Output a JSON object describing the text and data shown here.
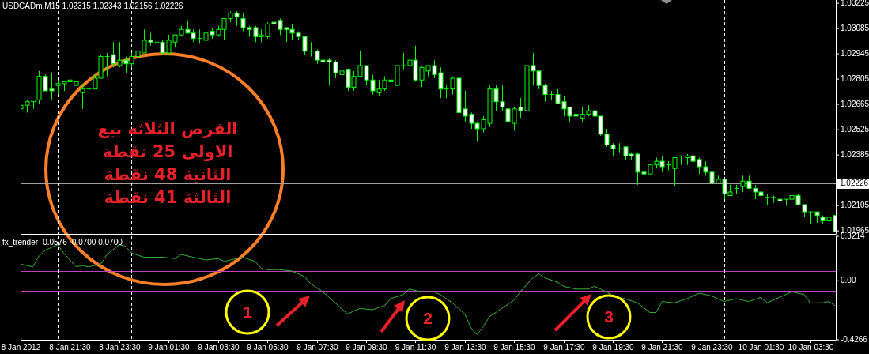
{
  "chart_data": [
    {
      "type": "candlestick",
      "title": "USDCADm,M15  1.02315 1.02343 1.02156 1.02226",
      "color": "#00ff00",
      "tick_labels": "y",
      "x": [
        "2012-01-08T19:30",
        "2012-01-08T19:45",
        "2012-01-08T20:00",
        "2012-01-08T20:15",
        "2012-01-08T20:30",
        "2012-01-08T20:45",
        "2012-01-08T21:00",
        "2012-01-08T21:15",
        "2012-01-08T21:30",
        "2012-01-08T21:45",
        "2012-01-08T22:00",
        "2012-01-08T22:15",
        "2012-01-08T22:30",
        "2012-01-08T22:45",
        "2012-01-08T23:00",
        "2012-01-08T23:15",
        "2012-01-08T23:30",
        "2012-01-08T23:45",
        "2012-01-09T00:00",
        "2012-01-09T00:15",
        "2012-01-09T00:30",
        "2012-01-09T00:45",
        "2012-01-09T01:00",
        "2012-01-09T01:15",
        "2012-01-09T01:30",
        "2012-01-09T01:45",
        "2012-01-09T02:00",
        "2012-01-09T02:15",
        "2012-01-09T02:30",
        "2012-01-09T02:45",
        "2012-01-09T03:00",
        "2012-01-09T03:15",
        "2012-01-09T03:30",
        "2012-01-09T03:45",
        "2012-01-09T04:00",
        "2012-01-09T04:15",
        "2012-01-09T04:30",
        "2012-01-09T04:45",
        "2012-01-09T05:00",
        "2012-01-09T05:15",
        "2012-01-09T05:30",
        "2012-01-09T05:45",
        "2012-01-09T06:00",
        "2012-01-09T06:15",
        "2012-01-09T06:30",
        "2012-01-09T06:45",
        "2012-01-09T07:00",
        "2012-01-09T07:15",
        "2012-01-09T07:30",
        "2012-01-09T07:45",
        "2012-01-09T08:00",
        "2012-01-09T08:15",
        "2012-01-09T08:30",
        "2012-01-09T08:45",
        "2012-01-09T09:00",
        "2012-01-09T09:15",
        "2012-01-09T09:30",
        "2012-01-09T09:45",
        "2012-01-09T10:00",
        "2012-01-09T10:15",
        "2012-01-09T10:30",
        "2012-01-09T10:45",
        "2012-01-09T11:00",
        "2012-01-09T11:15",
        "2012-01-09T11:30",
        "2012-01-09T11:45",
        "2012-01-09T12:00",
        "2012-01-09T12:15",
        "2012-01-09T12:30",
        "2012-01-09T12:45",
        "2012-01-09T13:00",
        "2012-01-09T13:15",
        "2012-01-09T13:30",
        "2012-01-09T13:45",
        "2012-01-09T14:00",
        "2012-01-09T14:15",
        "2012-01-09T14:30",
        "2012-01-09T14:45",
        "2012-01-09T15:00",
        "2012-01-09T15:15",
        "2012-01-09T15:30",
        "2012-01-09T15:45",
        "2012-01-09T16:00",
        "2012-01-09T16:15",
        "2012-01-09T16:30",
        "2012-01-09T16:45",
        "2012-01-09T17:00",
        "2012-01-09T17:15",
        "2012-01-09T17:30",
        "2012-01-09T17:45",
        "2012-01-09T18:00",
        "2012-01-09T18:15",
        "2012-01-09T18:30",
        "2012-01-09T18:45",
        "2012-01-09T19:00",
        "2012-01-09T19:15",
        "2012-01-09T19:30",
        "2012-01-09T19:45",
        "2012-01-09T20:00",
        "2012-01-09T20:15",
        "2012-01-09T20:30",
        "2012-01-09T20:45",
        "2012-01-09T21:00",
        "2012-01-09T21:15",
        "2012-01-09T21:30",
        "2012-01-09T21:45",
        "2012-01-09T22:00",
        "2012-01-09T22:15",
        "2012-01-09T22:30",
        "2012-01-09T22:45",
        "2012-01-09T23:00",
        "2012-01-09T23:15",
        "2012-01-09T23:30",
        "2012-01-09T23:45",
        "2012-01-10T00:00",
        "2012-01-10T00:15",
        "2012-01-10T00:30",
        "2012-01-10T00:45",
        "2012-01-10T01:00",
        "2012-01-10T01:15",
        "2012-01-10T01:30",
        "2012-01-10T01:45",
        "2012-01-10T02:00",
        "2012-01-10T02:15",
        "2012-01-10T02:30",
        "2012-01-10T02:45",
        "2012-01-10T03:00",
        "2012-01-10T03:15",
        "2012-01-10T03:30",
        "2012-01-10T03:45",
        "2012-01-10T04:00",
        "2012-01-10T04:15",
        "2012-01-10T04:30"
      ],
      "ohlc": [
        [
          1.0264,
          1.0267,
          1.0262,
          1.0266
        ],
        [
          1.0266,
          1.0269,
          1.0262,
          1.0268
        ],
        [
          1.0268,
          1.0269,
          1.0264,
          1.0269
        ],
        [
          1.0269,
          1.0285,
          1.0267,
          1.0282
        ],
        [
          1.0282,
          1.0283,
          1.0274,
          1.0274
        ],
        [
          1.0275,
          1.0284,
          1.0269,
          1.0274
        ],
        [
          1.0277,
          1.028,
          1.0272,
          1.0278
        ],
        [
          1.0278,
          1.0279,
          1.0274,
          1.0279
        ],
        [
          1.0279,
          1.028,
          1.0275,
          1.028
        ],
        [
          1.0277,
          1.0279,
          1.0277,
          1.0279
        ],
        [
          1.0273,
          1.0278,
          1.0264,
          1.0275
        ],
        [
          1.0275,
          1.0277,
          1.0272,
          1.0275
        ],
        [
          1.0275,
          1.0283,
          1.0275,
          1.0281
        ],
        [
          1.0281,
          1.0294,
          1.0281,
          1.0293
        ],
        [
          1.0293,
          1.0295,
          1.0282,
          1.0293
        ],
        [
          1.0294,
          1.0301,
          1.0287,
          1.0289
        ],
        [
          1.0288,
          1.0301,
          1.0287,
          1.0291
        ],
        [
          1.0291,
          1.0293,
          1.0284,
          1.0289
        ],
        [
          1.0289,
          1.0295,
          1.0287,
          1.0293
        ],
        [
          1.0293,
          1.03,
          1.0292,
          1.0296
        ],
        [
          1.0295,
          1.0308,
          1.0295,
          1.0302
        ],
        [
          1.0302,
          1.0306,
          1.0299,
          1.0301
        ],
        [
          1.0301,
          1.0302,
          1.0295,
          1.0301
        ],
        [
          1.0301,
          1.0302,
          1.0294,
          1.0295
        ],
        [
          1.0295,
          1.0305,
          1.0294,
          1.0302
        ],
        [
          1.0301,
          1.0305,
          1.0298,
          1.0305
        ],
        [
          1.0305,
          1.031,
          1.0304,
          1.0308
        ],
        [
          1.0308,
          1.0313,
          1.0306,
          1.0306
        ],
        [
          1.0306,
          1.0308,
          1.0301,
          1.0303
        ],
        [
          1.0303,
          1.0308,
          1.03,
          1.0303
        ],
        [
          1.0302,
          1.0309,
          1.0301,
          1.0306
        ],
        [
          1.0307,
          1.0309,
          1.0303,
          1.0305
        ],
        [
          1.0305,
          1.031,
          1.0304,
          1.0308
        ],
        [
          1.0308,
          1.0314,
          1.0302,
          1.0314
        ],
        [
          1.0314,
          1.0318,
          1.0312,
          1.0317
        ],
        [
          1.0317,
          1.0318,
          1.031,
          1.0315
        ],
        [
          1.0314,
          1.0317,
          1.0307,
          1.0309
        ],
        [
          1.0309,
          1.031,
          1.0304,
          1.0308
        ],
        [
          1.0309,
          1.031,
          1.0301,
          1.0304
        ],
        [
          1.0304,
          1.0308,
          1.0301,
          1.0305
        ],
        [
          1.0304,
          1.0312,
          1.0303,
          1.0311
        ],
        [
          1.0312,
          1.0315,
          1.031,
          1.0311
        ],
        [
          1.0313,
          1.0314,
          1.0305,
          1.0308
        ],
        [
          1.0309,
          1.0309,
          1.0301,
          1.0308
        ],
        [
          1.0308,
          1.0311,
          1.0302,
          1.0306
        ],
        [
          1.0306,
          1.0307,
          1.0302,
          1.0304
        ],
        [
          1.0304,
          1.0304,
          1.0294,
          1.0296
        ],
        [
          1.0296,
          1.0301,
          1.0293,
          1.0296
        ],
        [
          1.0296,
          1.0297,
          1.0289,
          1.0291
        ],
        [
          1.0291,
          1.0296,
          1.0289,
          1.029
        ],
        [
          1.0291,
          1.0292,
          1.0277,
          1.029
        ],
        [
          1.029,
          1.0291,
          1.0281,
          1.0284
        ],
        [
          1.0283,
          1.0291,
          1.0276,
          1.0285
        ],
        [
          1.0286,
          1.0286,
          1.0274,
          1.0276
        ],
        [
          1.0276,
          1.0285,
          1.0274,
          1.0282
        ],
        [
          1.0282,
          1.0296,
          1.0282,
          1.0288
        ],
        [
          1.0288,
          1.0288,
          1.0277,
          1.028
        ],
        [
          1.028,
          1.0283,
          1.0272,
          1.0274
        ],
        [
          1.0273,
          1.028,
          1.0271,
          1.0275
        ],
        [
          1.0275,
          1.0282,
          1.0274,
          1.028
        ],
        [
          1.028,
          1.0283,
          1.0277,
          1.0279
        ],
        [
          1.0277,
          1.0288,
          1.0277,
          1.0288
        ],
        [
          1.0288,
          1.0295,
          1.0286,
          1.0288
        ],
        [
          1.0288,
          1.0294,
          1.0285,
          1.0291
        ],
        [
          1.0291,
          1.0299,
          1.0279,
          1.028
        ],
        [
          1.028,
          1.0288,
          1.0276,
          1.0287
        ],
        [
          1.0285,
          1.0288,
          1.0282,
          1.0288
        ],
        [
          1.0288,
          1.0291,
          1.0281,
          1.0283
        ],
        [
          1.0284,
          1.0287,
          1.027,
          1.0275
        ],
        [
          1.0275,
          1.0277,
          1.027,
          1.0275
        ],
        [
          1.0275,
          1.0282,
          1.0272,
          1.0281
        ],
        [
          1.0281,
          1.0281,
          1.0259,
          1.0262
        ],
        [
          1.0264,
          1.0274,
          1.0257,
          1.026
        ],
        [
          1.0261,
          1.0262,
          1.0253,
          1.0256
        ],
        [
          1.0256,
          1.0257,
          1.0246,
          1.0253
        ],
        [
          1.0253,
          1.026,
          1.0251,
          1.0258
        ],
        [
          1.0256,
          1.0277,
          1.0254,
          1.0275
        ],
        [
          1.0275,
          1.0277,
          1.0263,
          1.0268
        ],
        [
          1.0268,
          1.0277,
          1.0263,
          1.0265
        ],
        [
          1.0264,
          1.0264,
          1.0255,
          1.0257
        ],
        [
          1.0256,
          1.0265,
          1.0252,
          1.0264
        ],
        [
          1.0265,
          1.027,
          1.0259,
          1.0263
        ],
        [
          1.0263,
          1.0291,
          1.0261,
          1.0288
        ],
        [
          1.0288,
          1.0295,
          1.0277,
          1.0285
        ],
        [
          1.0285,
          1.0285,
          1.0275,
          1.0277
        ],
        [
          1.0277,
          1.0278,
          1.0268,
          1.0272
        ],
        [
          1.0272,
          1.0274,
          1.0269,
          1.0272
        ],
        [
          1.0272,
          1.0275,
          1.0267,
          1.0267
        ],
        [
          1.0268,
          1.0271,
          1.026,
          1.0264
        ],
        [
          1.0265,
          1.0265,
          1.0257,
          1.026
        ],
        [
          1.0261,
          1.0263,
          1.0259,
          1.026
        ],
        [
          1.0259,
          1.0265,
          1.0257,
          1.0261
        ],
        [
          1.0261,
          1.0266,
          1.026,
          1.0263
        ],
        [
          1.0263,
          1.0263,
          1.0258,
          1.026
        ],
        [
          1.026,
          1.026,
          1.0249,
          1.025
        ],
        [
          1.025,
          1.0253,
          1.0243,
          1.0244
        ],
        [
          1.0244,
          1.0245,
          1.0238,
          1.0242
        ],
        [
          1.0242,
          1.0245,
          1.024,
          1.0242
        ],
        [
          1.0243,
          1.0243,
          1.0236,
          1.0238
        ],
        [
          1.0239,
          1.024,
          1.0236,
          1.0238
        ],
        [
          1.0239,
          1.024,
          1.0222,
          1.0229
        ],
        [
          1.0229,
          1.0235,
          1.0225,
          1.0228
        ],
        [
          1.0228,
          1.0233,
          1.0228,
          1.0233
        ],
        [
          1.0233,
          1.0237,
          1.0231,
          1.0235
        ],
        [
          1.0235,
          1.0238,
          1.0229,
          1.0232
        ],
        [
          1.0233,
          1.0235,
          1.023,
          1.0233
        ],
        [
          1.0231,
          1.0237,
          1.0221,
          1.0237
        ],
        [
          1.0238,
          1.0238,
          1.0233,
          1.0238
        ],
        [
          1.0237,
          1.0239,
          1.0233,
          1.0238
        ],
        [
          1.0238,
          1.0239,
          1.0234,
          1.0235
        ],
        [
          1.0236,
          1.0237,
          1.0228,
          1.0232
        ],
        [
          1.0232,
          1.0235,
          1.0227,
          1.0229
        ],
        [
          1.0229,
          1.023,
          1.0223,
          1.0223
        ],
        [
          1.0223,
          1.0227,
          1.0223,
          1.0225
        ],
        [
          1.0225,
          1.0225,
          1.0214,
          1.0217
        ],
        [
          1.0216,
          1.0222,
          1.0216,
          1.0218
        ],
        [
          1.022,
          1.0222,
          1.0217,
          1.022
        ],
        [
          1.0221,
          1.0227,
          1.0218,
          1.0224
        ],
        [
          1.0224,
          1.0227,
          1.022,
          1.022
        ],
        [
          1.022,
          1.0222,
          1.0214,
          1.0218
        ],
        [
          1.0218,
          1.022,
          1.0212,
          1.0216
        ],
        [
          1.0215,
          1.0217,
          1.0211,
          1.0215
        ],
        [
          1.0215,
          1.0216,
          1.0212,
          1.0215
        ],
        [
          1.0214,
          1.0215,
          1.0211,
          1.0213
        ],
        [
          1.0214,
          1.0214,
          1.0211,
          1.0214
        ],
        [
          1.0214,
          1.0218,
          1.0211,
          1.0216
        ],
        [
          1.0216,
          1.0217,
          1.0211,
          1.0211
        ],
        [
          1.0211,
          1.0211,
          1.0204,
          1.0207
        ],
        [
          1.0207,
          1.0207,
          1.02,
          1.0207
        ],
        [
          1.0207,
          1.0207,
          1.0201,
          1.0205
        ],
        [
          1.0204,
          1.0205,
          1.02,
          1.0202
        ],
        [
          1.0202,
          1.0205,
          1.0199,
          1.0204
        ],
        [
          1.0205,
          1.0205,
          1.0196,
          1.0196
        ]
      ],
      "xlim": [
        "2012-01-08T19:30",
        "2012-01-10T04:32"
      ],
      "ylim": [
        1.01948,
        1.03243
      ],
      "yticks": [
        1.03225,
        1.03085,
        1.02945,
        1.02805,
        1.02665,
        1.02525,
        1.02385,
        1.02105,
        1.01965
      ],
      "ref_lines": [
        {
          "axis": "y",
          "value": 1.02226,
          "label": "1.02226",
          "color": "#a0a0a0",
          "line_style": "solid"
        },
        {
          "axis": "x",
          "value": "2012-01-08T21:00",
          "color": "#ffffff",
          "line_style": "dashed"
        },
        {
          "axis": "x",
          "value": "2012-01-09T00:00",
          "color": "#ffffff",
          "line_style": "dashed"
        },
        {
          "axis": "x",
          "value": "2012-01-10T00:00",
          "color": "#ffffff",
          "line_style": "dashed"
        }
      ],
      "annotations": [
        "الفرص الثلاثة بيع",
        "الاولى 25 نقطة",
        "الثانية 48 نقطة",
        "الثالثة 41 نقطة"
      ]
    },
    {
      "type": "line",
      "title": "fx_trender -0.0576 -0.0700 0.0700",
      "series": [
        {
          "color": "#33b033",
          "x": [
            "2012-01-08T19:30",
            "2012-01-08T20:00",
            "2012-01-08T20:15",
            "2012-01-08T20:30",
            "2012-01-08T21:00",
            "2012-01-08T21:15",
            "2012-01-08T21:45",
            "2012-01-08T22:00",
            "2012-01-08T22:15",
            "2012-01-08T22:45",
            "2012-01-08T23:00",
            "2012-01-08T23:30",
            "2012-01-08T23:45",
            "2012-01-09T00:00",
            "2012-01-09T00:30",
            "2012-01-09T01:15",
            "2012-01-09T01:45",
            "2012-01-09T02:00",
            "2012-01-09T02:30",
            "2012-01-09T03:00",
            "2012-01-09T03:30",
            "2012-01-09T03:45",
            "2012-01-09T04:15",
            "2012-01-09T04:30",
            "2012-01-09T05:00",
            "2012-01-09T05:15",
            "2012-01-09T05:30",
            "2012-01-09T06:00",
            "2012-01-09T06:30",
            "2012-01-09T07:00",
            "2012-01-09T07:15",
            "2012-01-09T07:45",
            "2012-01-09T08:15",
            "2012-01-09T08:45",
            "2012-01-09T09:00",
            "2012-01-09T09:15",
            "2012-01-09T09:45",
            "2012-01-09T10:15",
            "2012-01-09T10:30",
            "2012-01-09T11:00",
            "2012-01-09T11:15",
            "2012-01-09T11:45",
            "2012-01-09T12:15",
            "2012-01-09T12:30",
            "2012-01-09T13:00",
            "2012-01-09T13:30",
            "2012-01-09T13:45",
            "2012-01-09T14:00",
            "2012-01-09T14:15",
            "2012-01-09T14:30",
            "2012-01-09T15:00",
            "2012-01-09T15:30",
            "2012-01-09T15:45",
            "2012-01-09T16:15",
            "2012-01-09T16:30",
            "2012-01-09T16:45",
            "2012-01-09T17:15",
            "2012-01-09T17:30",
            "2012-01-09T18:00",
            "2012-01-09T18:30",
            "2012-01-09T18:45",
            "2012-01-09T19:15",
            "2012-01-09T19:30",
            "2012-01-09T20:00",
            "2012-01-09T20:30",
            "2012-01-09T21:00",
            "2012-01-09T21:15",
            "2012-01-09T21:30",
            "2012-01-09T22:00",
            "2012-01-09T22:30",
            "2012-01-09T23:00",
            "2012-01-09T23:30",
            "2012-01-10T00:00",
            "2012-01-10T00:30",
            "2012-01-10T01:00",
            "2012-01-10T01:30",
            "2012-01-10T01:45",
            "2012-01-10T02:15",
            "2012-01-10T02:45",
            "2012-01-10T03:15",
            "2012-01-10T03:30",
            "2012-01-10T04:00",
            "2012-01-10T04:15",
            "2012-01-10T04:30"
          ],
          "values": [
            0.12,
            0.1,
            0.18,
            0.22,
            0.26,
            0.2,
            0.1,
            0.11,
            0.1,
            0.12,
            0.19,
            0.26,
            0.25,
            0.2,
            0.17,
            0.17,
            0.16,
            0.19,
            0.17,
            0.15,
            0.16,
            0.14,
            0.16,
            0.17,
            0.14,
            0.09,
            0.08,
            0.08,
            0.07,
            0.03,
            -0.02,
            -0.08,
            -0.16,
            -0.24,
            -0.22,
            -0.2,
            -0.21,
            -0.18,
            -0.13,
            -0.1,
            -0.06,
            -0.08,
            -0.08,
            -0.1,
            -0.16,
            -0.24,
            -0.34,
            -0.39,
            -0.33,
            -0.26,
            -0.2,
            -0.14,
            -0.08,
            0.02,
            0.05,
            0.02,
            -0.01,
            -0.04,
            -0.06,
            -0.06,
            -0.04,
            -0.08,
            -0.11,
            -0.13,
            -0.16,
            -0.23,
            -0.23,
            -0.15,
            -0.16,
            -0.13,
            -0.09,
            -0.11,
            -0.15,
            -0.13,
            -0.15,
            -0.12,
            -0.16,
            -0.12,
            -0.08,
            -0.1,
            -0.16,
            -0.16,
            -0.15,
            -0.18
          ]
        }
      ],
      "xlim": [
        "2012-01-08T19:30",
        "2012-01-10T04:32"
      ],
      "xticks": [
        {
          "value": "2012-01-08T19:30",
          "label": "8 Jan 2012"
        },
        {
          "value": "2012-01-08T21:30",
          "label": "8 Jan 21:30"
        },
        {
          "value": "2012-01-08T23:30",
          "label": "8 Jan 23:30"
        },
        {
          "value": "2012-01-09T01:30",
          "label": "9 Jan 01:30"
        },
        {
          "value": "2012-01-09T03:30",
          "label": "9 Jan 03:30"
        },
        {
          "value": "2012-01-09T05:30",
          "label": "9 Jan 05:30"
        },
        {
          "value": "2012-01-09T07:30",
          "label": "9 Jan 07:30"
        },
        {
          "value": "2012-01-09T09:30",
          "label": "9 Jan 09:30"
        },
        {
          "value": "2012-01-09T11:30",
          "label": "9 Jan 11:30"
        },
        {
          "value": "2012-01-09T13:30",
          "label": "9 Jan 13:30"
        },
        {
          "value": "2012-01-09T15:30",
          "label": "9 Jan 15:30"
        },
        {
          "value": "2012-01-09T17:30",
          "label": "9 Jan 17:30"
        },
        {
          "value": "2012-01-09T19:30",
          "label": "9 Jan 19:30"
        },
        {
          "value": "2012-01-09T21:30",
          "label": "9 Jan 21:30"
        },
        {
          "value": "2012-01-09T23:30",
          "label": "9 Jan 23:30"
        },
        {
          "value": "2012-01-10T01:30",
          "label": "10 Jan 01:30"
        },
        {
          "value": "2012-01-10T03:30",
          "label": "10 Jan 03:30"
        }
      ],
      "ylim": [
        -0.4266,
        0.3214
      ],
      "yticks": [
        0.3214,
        {
          "value": 0,
          "label": "0.00"
        },
        -0.4266
      ],
      "ref_lines": [
        {
          "axis": "y",
          "value": 0.07,
          "color": "#c040c0",
          "line_style": "solid"
        },
        {
          "axis": "y",
          "value": -0.07,
          "color": "#c040c0",
          "line_style": "solid"
        },
        {
          "axis": "x",
          "value": "2012-01-08T21:00",
          "color": "#ffffff",
          "line_style": "dashed"
        },
        {
          "axis": "x",
          "value": "2012-01-09T00:00",
          "color": "#ffffff",
          "line_style": "dashed"
        },
        {
          "axis": "x",
          "value": "2012-01-10T00:00",
          "color": "#ffffff",
          "line_style": "dashed"
        }
      ],
      "annotations": [
        "1",
        "2",
        "3"
      ]
    }
  ]
}
